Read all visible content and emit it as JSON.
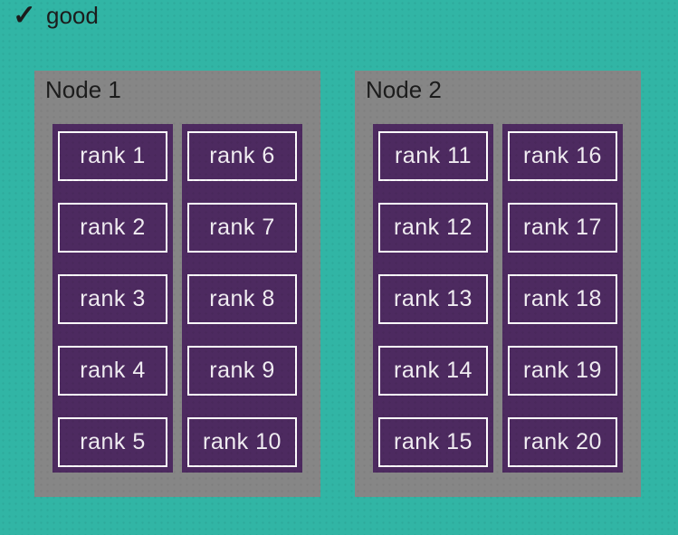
{
  "badge": {
    "icon": "checkmark-icon",
    "glyph": "✓",
    "label": "good"
  },
  "nodes": [
    {
      "label": "Node 1",
      "columns": [
        [
          "rank 1",
          "rank 2",
          "rank 3",
          "rank 4",
          "rank 5"
        ],
        [
          "rank 6",
          "rank 7",
          "rank 8",
          "rank 9",
          "rank 10"
        ]
      ]
    },
    {
      "label": "Node 2",
      "columns": [
        [
          "rank 11",
          "rank 12",
          "rank 13",
          "rank 14",
          "rank 15"
        ],
        [
          "rank 16",
          "rank 17",
          "rank 18",
          "rank 19",
          "rank 20"
        ]
      ]
    }
  ],
  "colors": {
    "background": "#31b5a5",
    "node_background": "#868686",
    "column_background": "#4d2a60",
    "rank_border": "#fcfbfc",
    "rank_text": "#f1edf2",
    "text": "#1c1c1c"
  }
}
